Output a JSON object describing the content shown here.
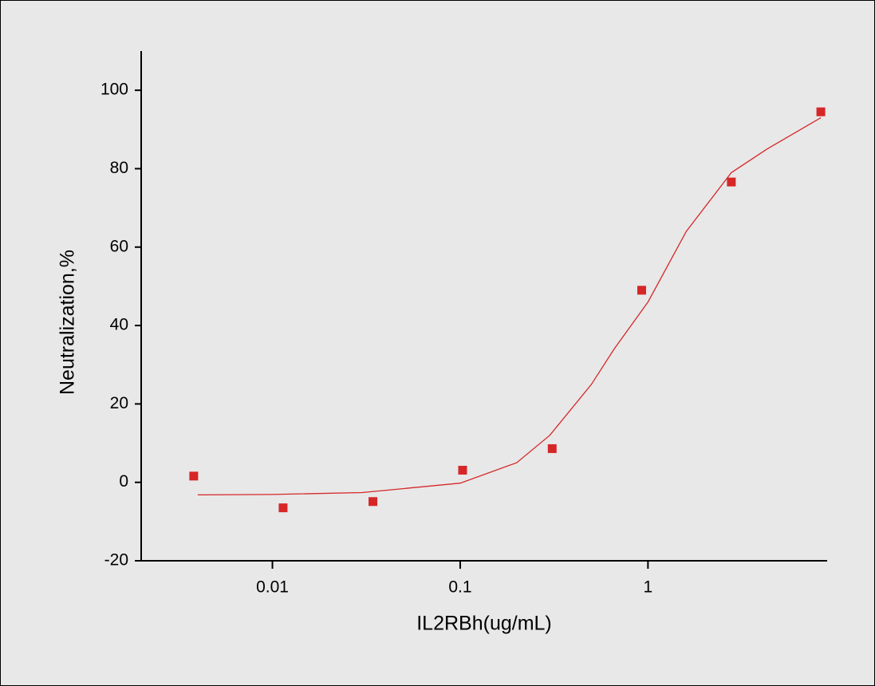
{
  "chart_data": {
    "type": "scatter",
    "xlabel": "IL2RBh(ug/mL)",
    "ylabel": "Neutralization,%",
    "xscale": "log",
    "xlim": [
      0.002,
      9
    ],
    "xticks": [
      0.01,
      0.1,
      1
    ],
    "ylim": [
      -20,
      110
    ],
    "yticks": [
      -20,
      0,
      20,
      40,
      60,
      80,
      100
    ],
    "series": [
      {
        "type": "scatter",
        "color": "#d62728",
        "x": [
          0.00381,
          0.0114,
          0.0343,
          0.103,
          0.309,
          0.926,
          2.78,
          8.33
        ],
        "values": [
          1.6,
          -6.5,
          -4.9,
          3.1,
          8.6,
          49,
          76.6,
          94.5
        ]
      },
      {
        "type": "line",
        "color": "#d62728",
        "x": [
          0.004,
          0.01,
          0.03,
          0.1,
          0.2,
          0.3,
          0.5,
          0.66,
          1,
          1.6,
          2.78,
          4.3,
          8.33
        ],
        "values": [
          -3.2,
          -3.1,
          -2.6,
          -0.2,
          5,
          12,
          25,
          34,
          46,
          64,
          79,
          85,
          93
        ]
      }
    ]
  }
}
